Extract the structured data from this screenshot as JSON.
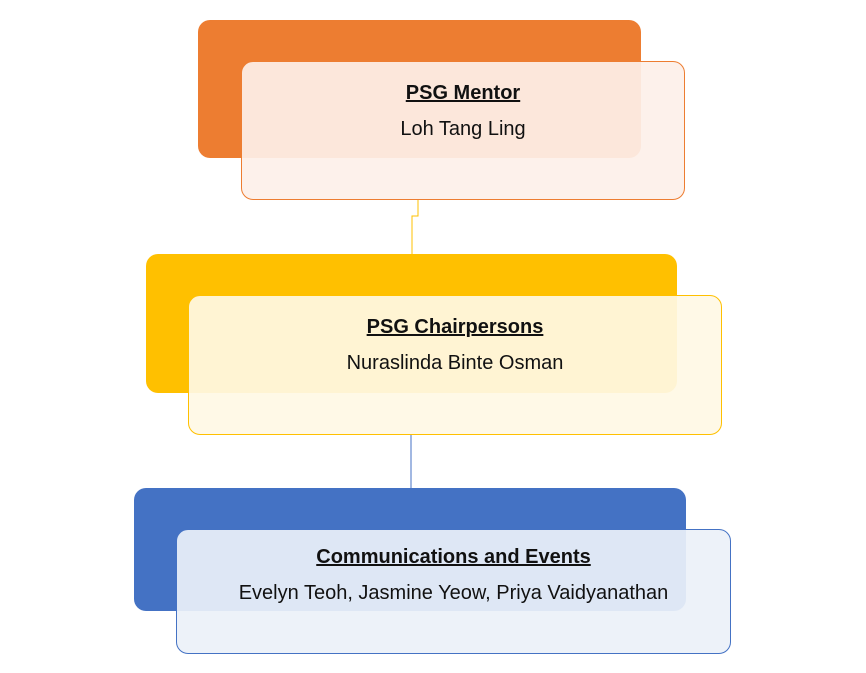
{
  "nodes": [
    {
      "title": "PSG Mentor",
      "names": "Loh Tang Ling",
      "colors": {
        "back": "#ED7D31",
        "front": "rgba(253,240,233,0.92)",
        "border": "#ED7D31"
      }
    },
    {
      "title": "PSG Chairpersons",
      "names": "Nuraslinda Binte Osman",
      "colors": {
        "back": "#FFC000",
        "front": "rgba(255,248,229,0.92)",
        "border": "#FFC000"
      }
    },
    {
      "title": "Communications and Events",
      "names": "Evelyn Teoh, Jasmine Yeow, Priya Vaidyanathan",
      "colors": {
        "back": "#4472C4",
        "front": "rgba(236,241,249,0.92)",
        "border": "#4472C4"
      }
    }
  ],
  "connector_colors": [
    "#FFC000",
    "#4472C4"
  ]
}
